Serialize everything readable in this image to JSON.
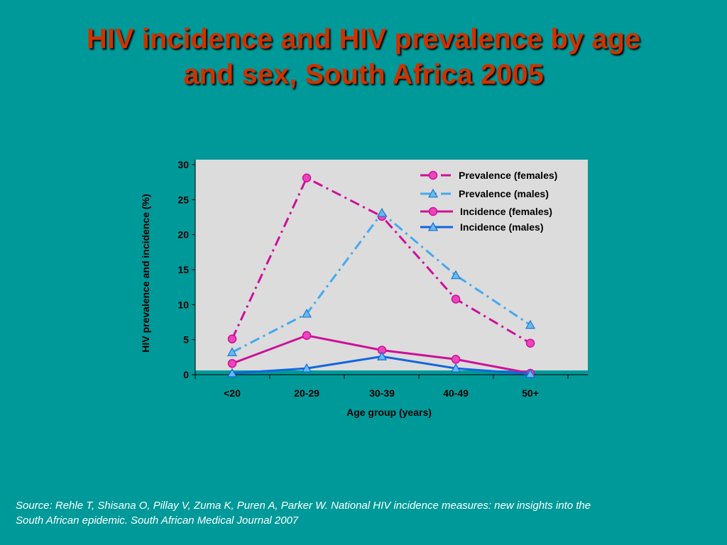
{
  "title_lines": [
    "HIV incidence and HIV prevalence by age",
    "and sex, South Africa 2005"
  ],
  "source": "Source: Rehle T, Shisana O, Pillay V, Zuma K, Puren A, Parker W. National HIV incidence measures: new insights into the South African epidemic. South African Medical Journal 2007",
  "colors": {
    "background": "#009999",
    "title": "#cc3300",
    "plot_area": "#dcdcdc",
    "magenta": "#cc1199",
    "magenta_marker": "#ee44bb",
    "blue_prev": "#44aaee",
    "blue_prev_marker": "#66bbee",
    "blue_inc": "#1166dd"
  },
  "chart_data": {
    "type": "line",
    "xlabel": "Age group (years)",
    "ylabel": "HIV prevalence and incidence (%)",
    "categories": [
      "<20",
      "20-29",
      "30-39",
      "40-49",
      "50+"
    ],
    "ylim": [
      0,
      30
    ],
    "yticks": [
      0,
      5,
      10,
      15,
      20,
      25,
      30
    ],
    "grid": false,
    "legend_position": "top-right",
    "series": [
      {
        "name": "Prevalence (females)",
        "values": [
          5.1,
          28.1,
          22.6,
          10.8,
          4.5
        ],
        "style": "dashdot",
        "marker": "circle",
        "color": "magenta"
      },
      {
        "name": "Prevalence (males)",
        "values": [
          3.2,
          8.7,
          23.1,
          14.2,
          7.1
        ],
        "style": "dashdot",
        "marker": "triangle",
        "color": "blue_prev"
      },
      {
        "name": "Incidence (females)",
        "values": [
          1.6,
          5.6,
          3.5,
          2.2,
          0.2
        ],
        "style": "solid",
        "marker": "circle",
        "color": "magenta"
      },
      {
        "name": "Incidence (males)",
        "values": [
          0.2,
          0.9,
          2.6,
          0.9,
          0.1
        ],
        "style": "solid",
        "marker": "triangle",
        "color": "blue_inc"
      }
    ]
  }
}
